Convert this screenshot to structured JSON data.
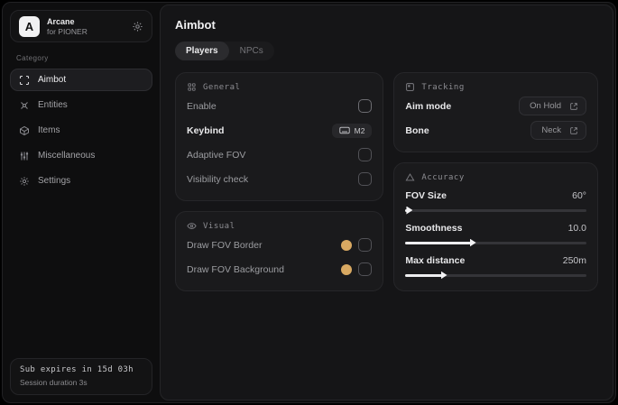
{
  "colors": {
    "accent_gold": "#d9a962"
  },
  "app": {
    "logo_letter": "A",
    "name": "Arcane",
    "subtitle": "for PIONER"
  },
  "sidebar": {
    "category_label": "Category",
    "items": [
      {
        "label": "Aimbot",
        "icon": "scan-icon",
        "selected": true
      },
      {
        "label": "Entities",
        "icon": "entities-icon",
        "selected": false
      },
      {
        "label": "Items",
        "icon": "box-icon",
        "selected": false
      },
      {
        "label": "Miscellaneous",
        "icon": "sliders-icon",
        "selected": false
      },
      {
        "label": "Settings",
        "icon": "gear-icon",
        "selected": false
      }
    ],
    "footer": {
      "line1": "Sub expires in 15d 03h",
      "line2": "Session duration 3s"
    }
  },
  "main": {
    "title": "Aimbot",
    "tabs": [
      {
        "label": "Players",
        "selected": true
      },
      {
        "label": "NPCs",
        "selected": false
      }
    ],
    "general": {
      "title": "General",
      "rows": [
        {
          "label": "Enable",
          "control": "checkbox",
          "checked": false
        },
        {
          "label": "Keybind",
          "control": "keybind",
          "value": "M2"
        },
        {
          "label": "Adaptive FOV",
          "control": "checkbox",
          "checked": false
        },
        {
          "label": "Visibility check",
          "control": "checkbox",
          "checked": false
        }
      ]
    },
    "visual": {
      "title": "Visual",
      "rows": [
        {
          "label": "Draw FOV Border",
          "control": "color-checkbox",
          "checked": false
        },
        {
          "label": "Draw FOV Background",
          "control": "color-checkbox",
          "checked": false
        }
      ]
    },
    "tracking": {
      "title": "Tracking",
      "rows": [
        {
          "label": "Aim mode",
          "value": "On Hold"
        },
        {
          "label": "Bone",
          "value": "Neck"
        }
      ]
    },
    "accuracy": {
      "title": "Accuracy",
      "sliders": [
        {
          "label": "FOV Size",
          "value": "60°",
          "percent": 2
        },
        {
          "label": "Smoothness",
          "value": "10.0",
          "percent": 37
        },
        {
          "label": "Max distance",
          "value": "250m",
          "percent": 21
        }
      ]
    }
  }
}
